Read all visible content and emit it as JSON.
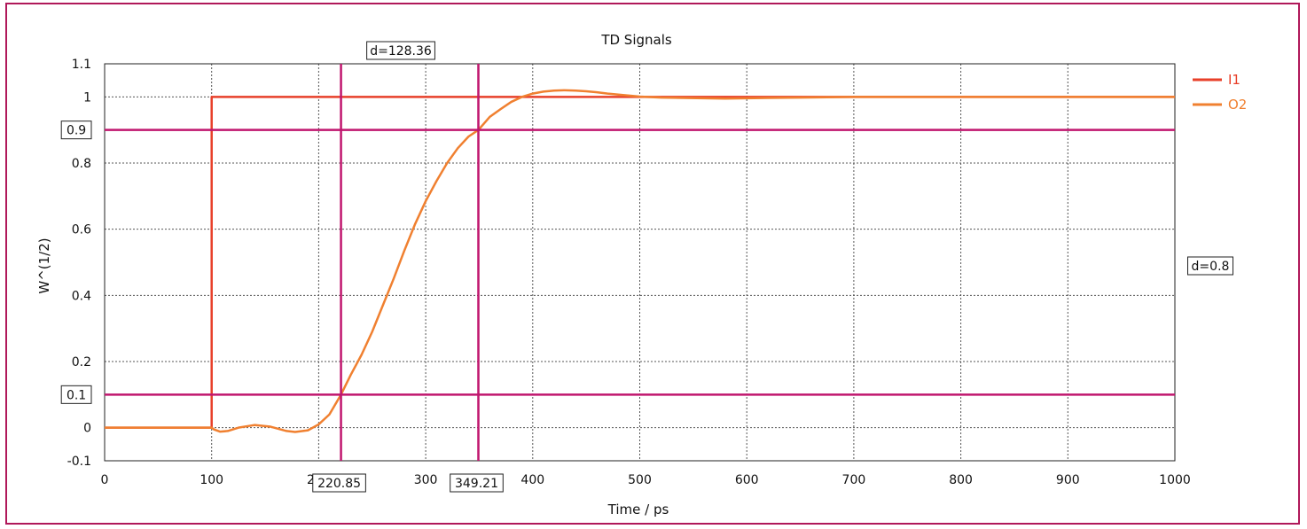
{
  "chart_data": {
    "type": "line",
    "title": "TD Signals",
    "xlabel": "Time / ps",
    "ylabel": "W^(1/2)",
    "xlim": [
      0,
      1000
    ],
    "ylim": [
      -0.1,
      1.1
    ],
    "x_ticks": [
      "0",
      "100",
      "200",
      "300",
      "400",
      "500",
      "600",
      "700",
      "800",
      "900",
      "1000"
    ],
    "y_ticks": [
      {
        "v": -0.1,
        "label": "-0.1"
      },
      {
        "v": 0,
        "label": "0"
      },
      {
        "v": 0.1,
        "label": "0.1"
      },
      {
        "v": 0.2,
        "label": "0.2"
      },
      {
        "v": 0.4,
        "label": "0.4"
      },
      {
        "v": 0.6,
        "label": "0.6"
      },
      {
        "v": 0.8,
        "label": "0.8"
      },
      {
        "v": 0.9,
        "label": "0.9"
      },
      {
        "v": 1.0,
        "label": "1"
      },
      {
        "v": 1.1,
        "label": "1.1"
      }
    ],
    "grid": true,
    "legend_position": "top-right",
    "series": [
      {
        "name": "I1",
        "color": "#e8402a",
        "x": [
          0,
          100,
          100,
          1000
        ],
        "y": [
          0,
          0,
          1,
          1
        ]
      },
      {
        "name": "O2",
        "color": "#f08030",
        "x": [
          0,
          100,
          102,
          108,
          115,
          125,
          140,
          155,
          170,
          178,
          190,
          200,
          210,
          220.85,
          230,
          240,
          250,
          260,
          270,
          280,
          290,
          300,
          310,
          320,
          330,
          340,
          349.21,
          360,
          370,
          380,
          390,
          400,
          410,
          420,
          430,
          440,
          450,
          460,
          470,
          480,
          490,
          500,
          520,
          540,
          560,
          580,
          600,
          620,
          650,
          700,
          800,
          900,
          1000
        ],
        "y": [
          0,
          0,
          -0.005,
          -0.012,
          -0.01,
          0.0,
          0.008,
          0.003,
          -0.01,
          -0.013,
          -0.008,
          0.01,
          0.04,
          0.1,
          0.16,
          0.22,
          0.29,
          0.37,
          0.45,
          0.535,
          0.615,
          0.685,
          0.745,
          0.8,
          0.845,
          0.88,
          0.9,
          0.94,
          0.963,
          0.985,
          1.0,
          1.01,
          1.016,
          1.019,
          1.02,
          1.019,
          1.017,
          1.014,
          1.01,
          1.007,
          1.004,
          1.001,
          0.998,
          0.997,
          0.996,
          0.995,
          0.996,
          0.997,
          0.998,
          1.0,
          1.0,
          1.0,
          1.0
        ]
      }
    ],
    "cursors": {
      "vertical": [
        {
          "x": 220.85,
          "label": "220.85"
        },
        {
          "x": 349.21,
          "label": "349.21"
        }
      ],
      "horizontal": [
        {
          "y": 0.1,
          "label": "0.1"
        },
        {
          "y": 0.9,
          "label": "0.9"
        }
      ],
      "x_delta_label": "d=128.36",
      "y_delta_label": "d=0.8",
      "color": "#c0166e"
    }
  }
}
